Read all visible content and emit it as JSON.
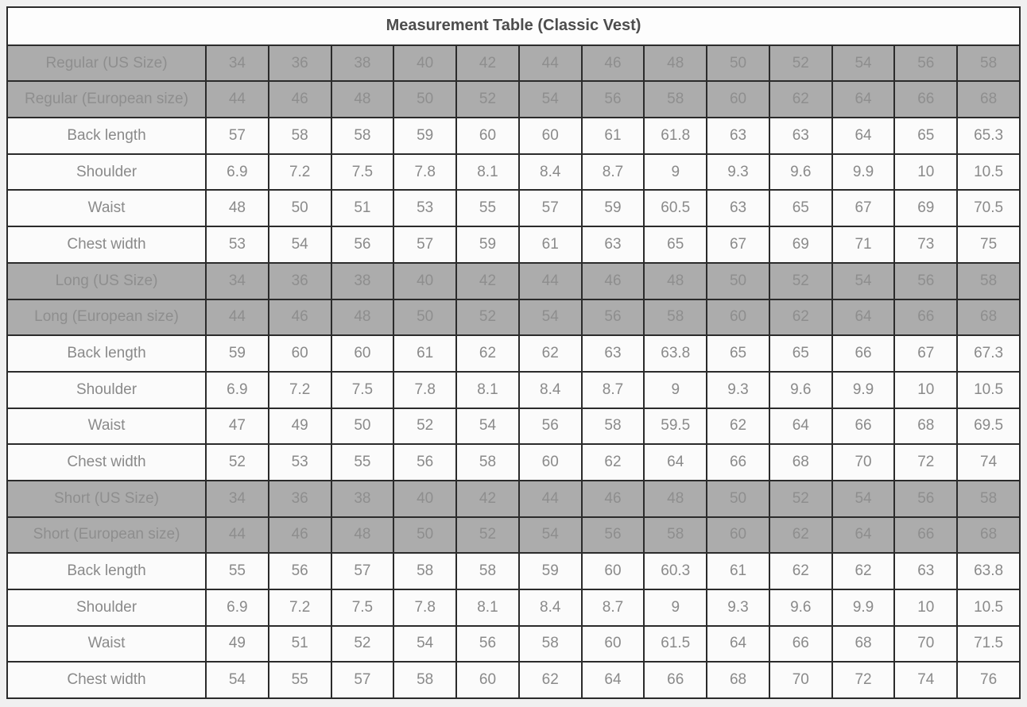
{
  "chart_data": {
    "type": "table",
    "title": "Measurement Table (Classic Vest)",
    "size_column_count": 13,
    "sections": [
      {
        "name": "Regular",
        "header_rows": [
          {
            "label": "Regular (US Size)",
            "values": [
              "34",
              "36",
              "38",
              "40",
              "42",
              "44",
              "46",
              "48",
              "50",
              "52",
              "54",
              "56",
              "58"
            ]
          },
          {
            "label": "Regular (European size)",
            "values": [
              "44",
              "46",
              "48",
              "50",
              "52",
              "54",
              "56",
              "58",
              "60",
              "62",
              "64",
              "66",
              "68"
            ]
          }
        ],
        "rows": [
          {
            "label": "Back length",
            "values": [
              "57",
              "58",
              "58",
              "59",
              "60",
              "60",
              "61",
              "61.8",
              "63",
              "63",
              "64",
              "65",
              "65.3"
            ]
          },
          {
            "label": "Shoulder",
            "values": [
              "6.9",
              "7.2",
              "7.5",
              "7.8",
              "8.1",
              "8.4",
              "8.7",
              "9",
              "9.3",
              "9.6",
              "9.9",
              "10",
              "10.5"
            ]
          },
          {
            "label": "Waist",
            "values": [
              "48",
              "50",
              "51",
              "53",
              "55",
              "57",
              "59",
              "60.5",
              "63",
              "65",
              "67",
              "69",
              "70.5"
            ]
          },
          {
            "label": "Chest width",
            "values": [
              "53",
              "54",
              "56",
              "57",
              "59",
              "61",
              "63",
              "65",
              "67",
              "69",
              "71",
              "73",
              "75"
            ]
          }
        ]
      },
      {
        "name": "Long",
        "header_rows": [
          {
            "label": "Long (US Size)",
            "values": [
              "34",
              "36",
              "38",
              "40",
              "42",
              "44",
              "46",
              "48",
              "50",
              "52",
              "54",
              "56",
              "58"
            ]
          },
          {
            "label": "Long (European size)",
            "values": [
              "44",
              "46",
              "48",
              "50",
              "52",
              "54",
              "56",
              "58",
              "60",
              "62",
              "64",
              "66",
              "68"
            ]
          }
        ],
        "rows": [
          {
            "label": "Back length",
            "values": [
              "59",
              "60",
              "60",
              "61",
              "62",
              "62",
              "63",
              "63.8",
              "65",
              "65",
              "66",
              "67",
              "67.3"
            ]
          },
          {
            "label": "Shoulder",
            "values": [
              "6.9",
              "7.2",
              "7.5",
              "7.8",
              "8.1",
              "8.4",
              "8.7",
              "9",
              "9.3",
              "9.6",
              "9.9",
              "10",
              "10.5"
            ]
          },
          {
            "label": "Waist",
            "values": [
              "47",
              "49",
              "50",
              "52",
              "54",
              "56",
              "58",
              "59.5",
              "62",
              "64",
              "66",
              "68",
              "69.5"
            ]
          },
          {
            "label": "Chest width",
            "values": [
              "52",
              "53",
              "55",
              "56",
              "58",
              "60",
              "62",
              "64",
              "66",
              "68",
              "70",
              "72",
              "74"
            ]
          }
        ]
      },
      {
        "name": "Short",
        "header_rows": [
          {
            "label": "Short (US Size)",
            "values": [
              "34",
              "36",
              "38",
              "40",
              "42",
              "44",
              "46",
              "48",
              "50",
              "52",
              "54",
              "56",
              "58"
            ]
          },
          {
            "label": "Short (European size)",
            "values": [
              "44",
              "46",
              "48",
              "50",
              "52",
              "54",
              "56",
              "58",
              "60",
              "62",
              "64",
              "66",
              "68"
            ]
          }
        ],
        "rows": [
          {
            "label": "Back length",
            "values": [
              "55",
              "56",
              "57",
              "58",
              "58",
              "59",
              "60",
              "60.3",
              "61",
              "62",
              "62",
              "63",
              "63.8"
            ]
          },
          {
            "label": "Shoulder",
            "values": [
              "6.9",
              "7.2",
              "7.5",
              "7.8",
              "8.1",
              "8.4",
              "8.7",
              "9",
              "9.3",
              "9.6",
              "9.9",
              "10",
              "10.5"
            ]
          },
          {
            "label": "Waist",
            "values": [
              "49",
              "51",
              "52",
              "54",
              "56",
              "58",
              "60",
              "61.5",
              "64",
              "66",
              "68",
              "70",
              "71.5"
            ]
          },
          {
            "label": "Chest width",
            "values": [
              "54",
              "55",
              "57",
              "58",
              "60",
              "62",
              "64",
              "66",
              "68",
              "70",
              "72",
              "74",
              "76"
            ]
          }
        ]
      }
    ]
  },
  "colors": {
    "page_bg": "#f0f0f0",
    "cell_bg": "#fbfbfb",
    "title_bg": "#fdfdfd",
    "size_row_bg": "#acacac",
    "size_row_text": "#8e8e8e",
    "cell_text": "#8a8a8a",
    "title_text": "#4d4d4d",
    "border": "#2b2b2b",
    "size_row_divider": "#878787"
  }
}
